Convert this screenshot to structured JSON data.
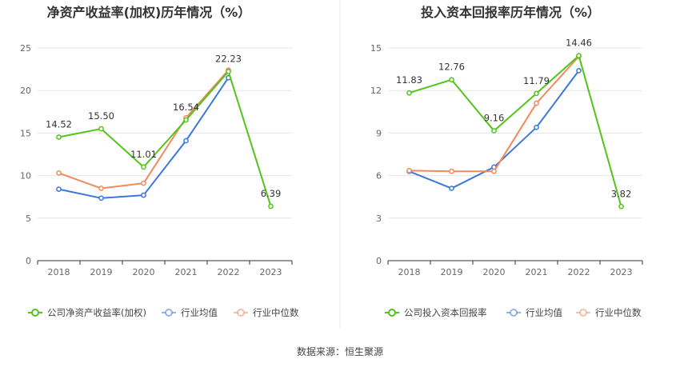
{
  "source_text": "数据来源：恒生聚源",
  "chart_data": [
    {
      "type": "line",
      "title": "净资产收益率(加权)历年情况（%）",
      "categories": [
        "2018",
        "2019",
        "2020",
        "2021",
        "2022",
        "2023"
      ],
      "ylim": [
        0,
        25
      ],
      "yticks": [
        0,
        5,
        10,
        15,
        20,
        25
      ],
      "grid": true,
      "legend_position": "bottom",
      "series": [
        {
          "name": "公司净资产收益率(加权)",
          "color": "#52c41a",
          "values": [
            14.52,
            15.5,
            11.01,
            16.54,
            22.23,
            6.39
          ],
          "labels": [
            "14.52",
            "15.50",
            "11.01",
            "16.54",
            "22.23",
            "6.39"
          ]
        },
        {
          "name": "行业均值",
          "color": "#3b78d8",
          "values": [
            8.4,
            7.35,
            7.7,
            14.1,
            21.5,
            null
          ]
        },
        {
          "name": "行业中位数",
          "color": "#f08a5d",
          "values": [
            10.3,
            8.5,
            9.1,
            16.8,
            22.4,
            null
          ]
        }
      ]
    },
    {
      "type": "line",
      "title": "投入资本回报率历年情况（%）",
      "categories": [
        "2018",
        "2019",
        "2020",
        "2021",
        "2022",
        "2023"
      ],
      "ylim": [
        0,
        15
      ],
      "yticks": [
        0,
        3,
        6,
        9,
        12,
        15
      ],
      "grid": true,
      "legend_position": "bottom",
      "series": [
        {
          "name": "公司投入资本回报率",
          "color": "#52c41a",
          "values": [
            11.83,
            12.76,
            9.16,
            11.79,
            14.46,
            3.82
          ],
          "labels": [
            "11.83",
            "12.76",
            "9.16",
            "11.79",
            "14.46",
            "3.82"
          ]
        },
        {
          "name": "行业均值",
          "color": "#3b78d8",
          "values": [
            6.3,
            5.1,
            6.6,
            9.4,
            13.4,
            null
          ]
        },
        {
          "name": "行业中位数",
          "color": "#f08a5d",
          "values": [
            6.35,
            6.3,
            6.3,
            11.1,
            14.4,
            null
          ]
        }
      ]
    }
  ]
}
